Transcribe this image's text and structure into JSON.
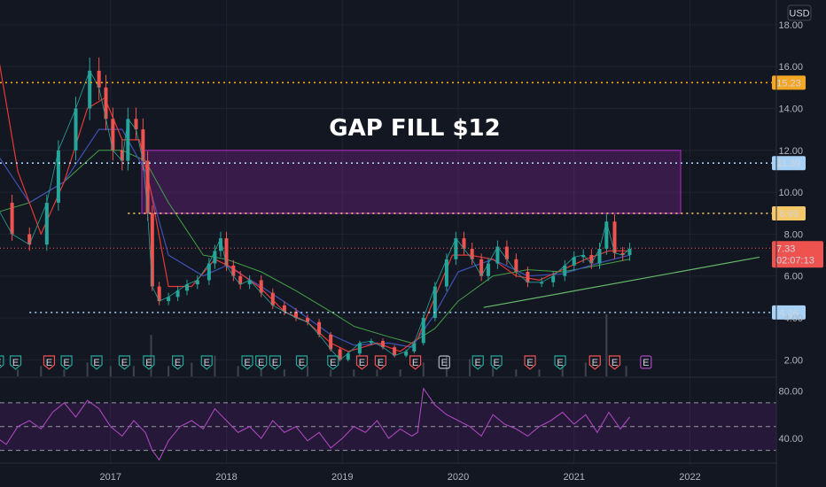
{
  "chart_data": {
    "type": "line",
    "currency": "USD",
    "annotation": "GAP FILL $12",
    "x_ticks": [
      "2017",
      "2018",
      "2019",
      "2020",
      "2021",
      "2022"
    ],
    "y_ticks": [
      "18.00",
      "16.00",
      "14.00",
      "12.00",
      "10.00",
      "8.00",
      "6.00",
      "4.00",
      "2.00"
    ],
    "ylim": [
      1,
      18.5
    ],
    "levels": [
      {
        "value": 15.23,
        "label": "15.23",
        "color": "#f5a623",
        "label_text": "#000000"
      },
      {
        "value": 11.39,
        "label": "11.39",
        "color": "#a8d2f5",
        "label_text": "#000000"
      },
      {
        "value": 8.99,
        "label": "8.99",
        "color": "#f5c86a",
        "label_text": "#000000"
      },
      {
        "value": 4.26,
        "label": "4.26",
        "color": "#a8d2f5",
        "label_text": "#000000"
      }
    ],
    "current_price": {
      "value": 7.33,
      "label": "7.33",
      "countdown": "02:07:13",
      "color": "#ef5350"
    },
    "gap_zone": {
      "low": 8.99,
      "high": 12.0,
      "from": 2017.27,
      "to": 2021.92,
      "color": "#9c27b0"
    },
    "trendline": {
      "x1": 2020.22,
      "y1": 4.5,
      "x2": 2022.6,
      "y2": 6.9,
      "color": "#66bb6a"
    },
    "price_series": {
      "x": [
        2016.0,
        2016.15,
        2016.3,
        2016.45,
        2016.55,
        2016.7,
        2016.82,
        2016.9,
        2016.96,
        2017.02,
        2017.1,
        2017.15,
        2017.22,
        2017.28,
        2017.32,
        2017.36,
        2017.42,
        2017.5,
        2017.58,
        2017.66,
        2017.75,
        2017.85,
        2017.9,
        2017.95,
        2018.0,
        2018.06,
        2018.12,
        2018.2,
        2018.3,
        2018.4,
        2018.5,
        2018.6,
        2018.7,
        2018.8,
        2018.9,
        2018.98,
        2019.05,
        2019.15,
        2019.25,
        2019.35,
        2019.45,
        2019.55,
        2019.62,
        2019.7,
        2019.8,
        2019.9,
        2019.98,
        2020.05,
        2020.12,
        2020.2,
        2020.26,
        2020.34,
        2020.42,
        2020.5,
        2020.6,
        2020.72,
        2020.82,
        2020.92,
        2021.0,
        2021.08,
        2021.15,
        2021.22,
        2021.28,
        2021.35,
        2021.42,
        2021.48
      ],
      "values": [
        9.5,
        8.0,
        7.5,
        9.5,
        12.0,
        14.0,
        15.8,
        15.0,
        13.5,
        12.0,
        11.5,
        13.5,
        13.0,
        11.5,
        9.0,
        5.5,
        4.8,
        5.0,
        5.3,
        5.6,
        5.8,
        6.6,
        7.2,
        7.8,
        6.5,
        6.0,
        5.6,
        5.8,
        5.2,
        4.6,
        4.3,
        4.0,
        3.8,
        3.2,
        2.5,
        2.0,
        2.3,
        2.8,
        2.9,
        2.6,
        2.2,
        2.4,
        2.8,
        4.0,
        5.5,
        6.8,
        7.8,
        7.3,
        6.8,
        6.0,
        6.6,
        7.4,
        6.8,
        6.2,
        5.7,
        5.7,
        6.0,
        6.5,
        6.9,
        7.0,
        6.6,
        7.3,
        8.6,
        7.1,
        7.0,
        7.3
      ]
    },
    "ma_fast": {
      "color": "#e53935",
      "x": [
        2016.0,
        2016.2,
        2016.4,
        2016.6,
        2016.8,
        2016.95,
        2017.1,
        2017.25,
        2017.35,
        2017.5,
        2017.7,
        2017.9,
        2018.05,
        2018.3,
        2018.5,
        2018.7,
        2018.9,
        2019.05,
        2019.3,
        2019.5,
        2019.65,
        2019.8,
        2019.95,
        2020.1,
        2020.3,
        2020.5,
        2020.7,
        2020.9,
        2021.1,
        2021.3,
        2021.48
      ],
      "values": [
        17.5,
        11.0,
        8.0,
        10.5,
        14.0,
        14.5,
        12.5,
        12.5,
        10.0,
        5.5,
        5.5,
        6.8,
        6.4,
        5.4,
        4.3,
        3.8,
        2.8,
        2.4,
        2.8,
        2.4,
        3.0,
        5.0,
        7.0,
        7.0,
        6.8,
        6.0,
        5.8,
        6.3,
        6.8,
        7.2,
        7.2
      ]
    },
    "ma_mid": {
      "color": "#3f51b5",
      "x": [
        2016.0,
        2016.3,
        2016.6,
        2016.9,
        2017.1,
        2017.3,
        2017.5,
        2017.8,
        2018.0,
        2018.3,
        2018.6,
        2018.9,
        2019.1,
        2019.4,
        2019.6,
        2019.8,
        2020.0,
        2020.3,
        2020.6,
        2020.9,
        2021.2,
        2021.48
      ],
      "values": [
        12.0,
        9.5,
        10.5,
        13.0,
        13.0,
        11.0,
        7.0,
        6.0,
        6.5,
        5.5,
        4.4,
        3.2,
        2.7,
        2.8,
        2.6,
        4.2,
        6.2,
        6.8,
        6.0,
        6.1,
        6.6,
        7.0
      ]
    },
    "ma_slow": {
      "color": "#43a047",
      "x": [
        2016.0,
        2016.3,
        2016.6,
        2016.9,
        2017.1,
        2017.3,
        2017.5,
        2017.8,
        2018.0,
        2018.3,
        2018.6,
        2018.9,
        2019.1,
        2019.4,
        2019.6,
        2019.8,
        2020.0,
        2020.3,
        2020.6,
        2020.9,
        2021.2,
        2021.48
      ],
      "values": [
        9.0,
        9.5,
        10.5,
        12.0,
        12.0,
        11.5,
        9.5,
        7.0,
        6.8,
        6.2,
        5.3,
        4.3,
        3.6,
        3.1,
        2.8,
        3.5,
        4.8,
        6.0,
        6.3,
        6.2,
        6.5,
        6.8
      ]
    },
    "earnings_markers": {
      "x": [
        2016.03,
        2016.18,
        2016.47,
        2016.62,
        2016.88,
        2017.12,
        2017.33,
        2017.58,
        2017.83,
        2018.18,
        2018.3,
        2018.42,
        2018.65,
        2018.92,
        2019.17,
        2019.33,
        2019.63,
        2019.88,
        2020.17,
        2020.33,
        2020.62,
        2020.88,
        2021.18,
        2021.35,
        2021.62
      ],
      "types": [
        "beat",
        "beat",
        "miss",
        "beat",
        "beat",
        "beat",
        "beat",
        "beat",
        "beat",
        "beat",
        "beat",
        "beat",
        "beat",
        "beat",
        "miss",
        "miss",
        "miss",
        "neutral",
        "beat",
        "beat",
        "miss",
        "beat",
        "miss",
        "miss",
        "upcoming"
      ],
      "glyph": "E"
    },
    "rsi": {
      "y_ticks": [
        "80.00",
        "40.00"
      ],
      "ylim": [
        20,
        90
      ],
      "upper": 70,
      "lower": 30,
      "mid": 50,
      "color": "#ab47bc",
      "x": [
        2016.0,
        2016.1,
        2016.2,
        2016.3,
        2016.4,
        2016.5,
        2016.6,
        2016.7,
        2016.8,
        2016.9,
        2017.0,
        2017.1,
        2017.2,
        2017.3,
        2017.36,
        2017.42,
        2017.5,
        2017.6,
        2017.7,
        2017.8,
        2017.9,
        2018.0,
        2018.1,
        2018.2,
        2018.3,
        2018.4,
        2018.5,
        2018.6,
        2018.7,
        2018.8,
        2018.9,
        2019.0,
        2019.1,
        2019.2,
        2019.3,
        2019.4,
        2019.5,
        2019.6,
        2019.65,
        2019.7,
        2019.8,
        2019.9,
        2020.0,
        2020.1,
        2020.2,
        2020.3,
        2020.4,
        2020.5,
        2020.6,
        2020.7,
        2020.8,
        2020.9,
        2021.0,
        2021.1,
        2021.2,
        2021.3,
        2021.4,
        2021.48
      ],
      "values": [
        42,
        35,
        50,
        55,
        48,
        62,
        70,
        58,
        72,
        65,
        50,
        42,
        55,
        45,
        30,
        22,
        38,
        50,
        55,
        48,
        65,
        55,
        45,
        50,
        40,
        55,
        45,
        50,
        38,
        45,
        32,
        40,
        50,
        45,
        55,
        40,
        48,
        42,
        45,
        82,
        68,
        60,
        55,
        50,
        42,
        60,
        52,
        48,
        42,
        50,
        55,
        62,
        52,
        60,
        45,
        62,
        48,
        58
      ]
    },
    "volume": {
      "x": [
        2016.0,
        2016.2,
        2016.4,
        2016.6,
        2016.8,
        2017.0,
        2017.2,
        2017.35,
        2017.5,
        2017.7,
        2017.9,
        2018.1,
        2018.3,
        2018.5,
        2018.7,
        2018.9,
        2019.1,
        2019.3,
        2019.5,
        2019.7,
        2019.9,
        2020.1,
        2020.3,
        2020.5,
        2020.7,
        2020.9,
        2021.1,
        2021.28,
        2021.45
      ],
      "values": [
        2,
        2,
        3,
        2,
        4,
        3,
        3,
        12,
        3,
        4,
        6,
        3,
        2,
        2,
        3,
        2,
        2,
        2,
        2,
        4,
        6,
        5,
        3,
        2,
        2,
        3,
        4,
        18,
        3
      ]
    }
  }
}
